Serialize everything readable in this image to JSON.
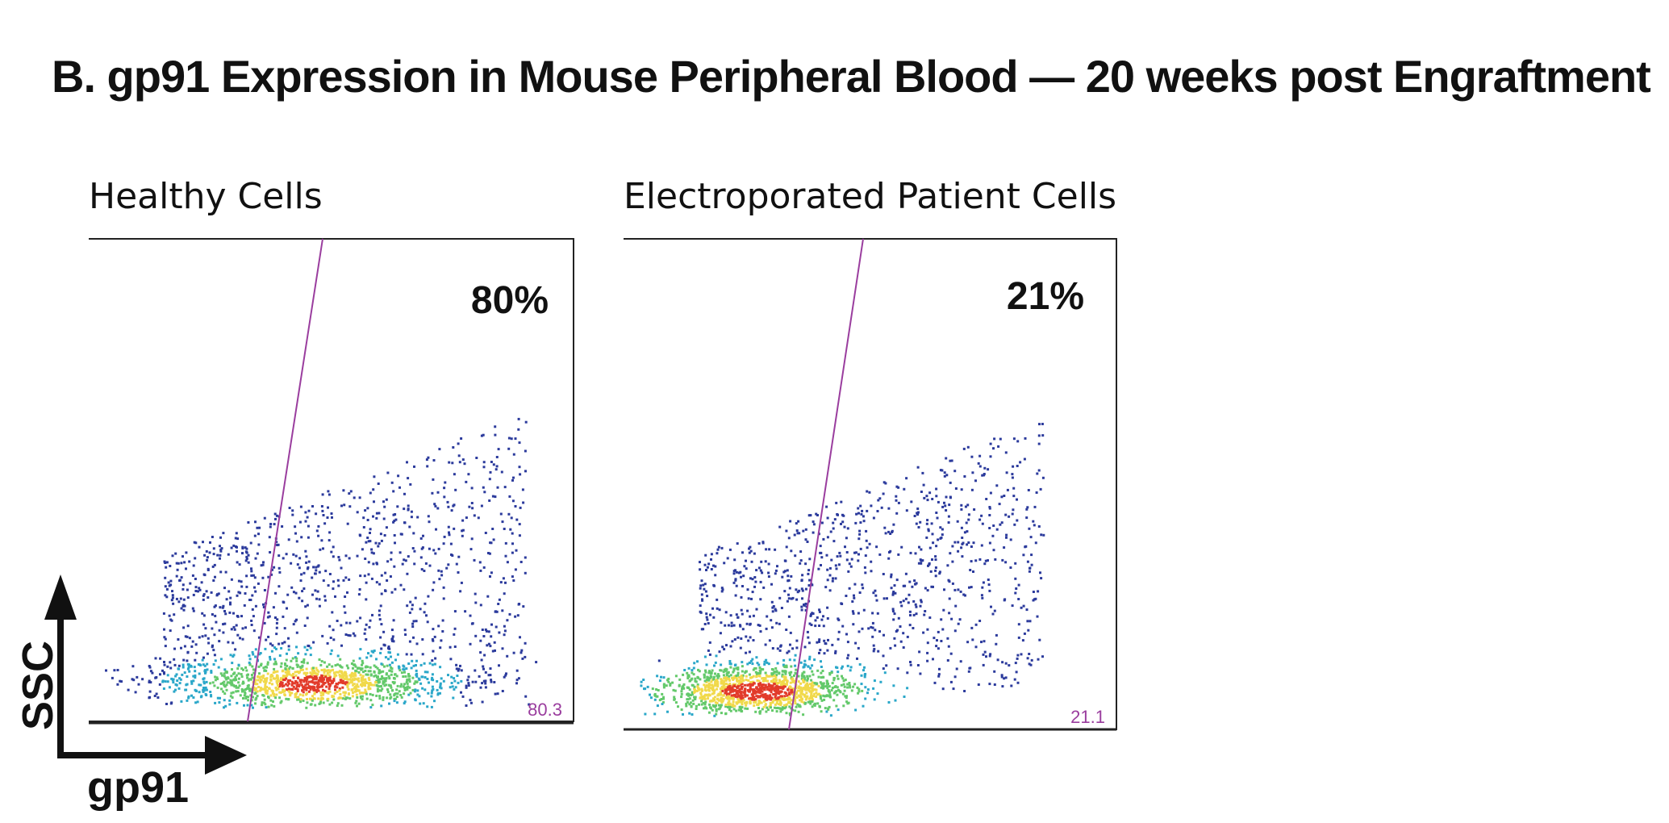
{
  "chart_data": {
    "type": "scatter",
    "title": "B. gp91 Expression in Mouse Peripheral Blood — 20 weeks post Engraftment",
    "xlabel": "gp91",
    "ylabel": "SSC",
    "panels": [
      {
        "name": "Healthy Cells",
        "percent_label": "80%",
        "gate_value": "80.3",
        "gate_fraction_positive": 0.803,
        "density_colormap": [
          "#2b3a9c",
          "#2aa7c9",
          "#63c96a",
          "#f1d94a",
          "#e23b2a"
        ]
      },
      {
        "name": "Electroporated Patient Cells",
        "percent_label": "21%",
        "gate_value": "21.1",
        "gate_fraction_positive": 0.211,
        "density_colormap": [
          "#2b3a9c",
          "#2aa7c9",
          "#63c96a",
          "#f1d94a",
          "#e23b2a"
        ]
      }
    ]
  },
  "colors": {
    "gate_line": "#9a3d9e",
    "axis": "#111111"
  }
}
